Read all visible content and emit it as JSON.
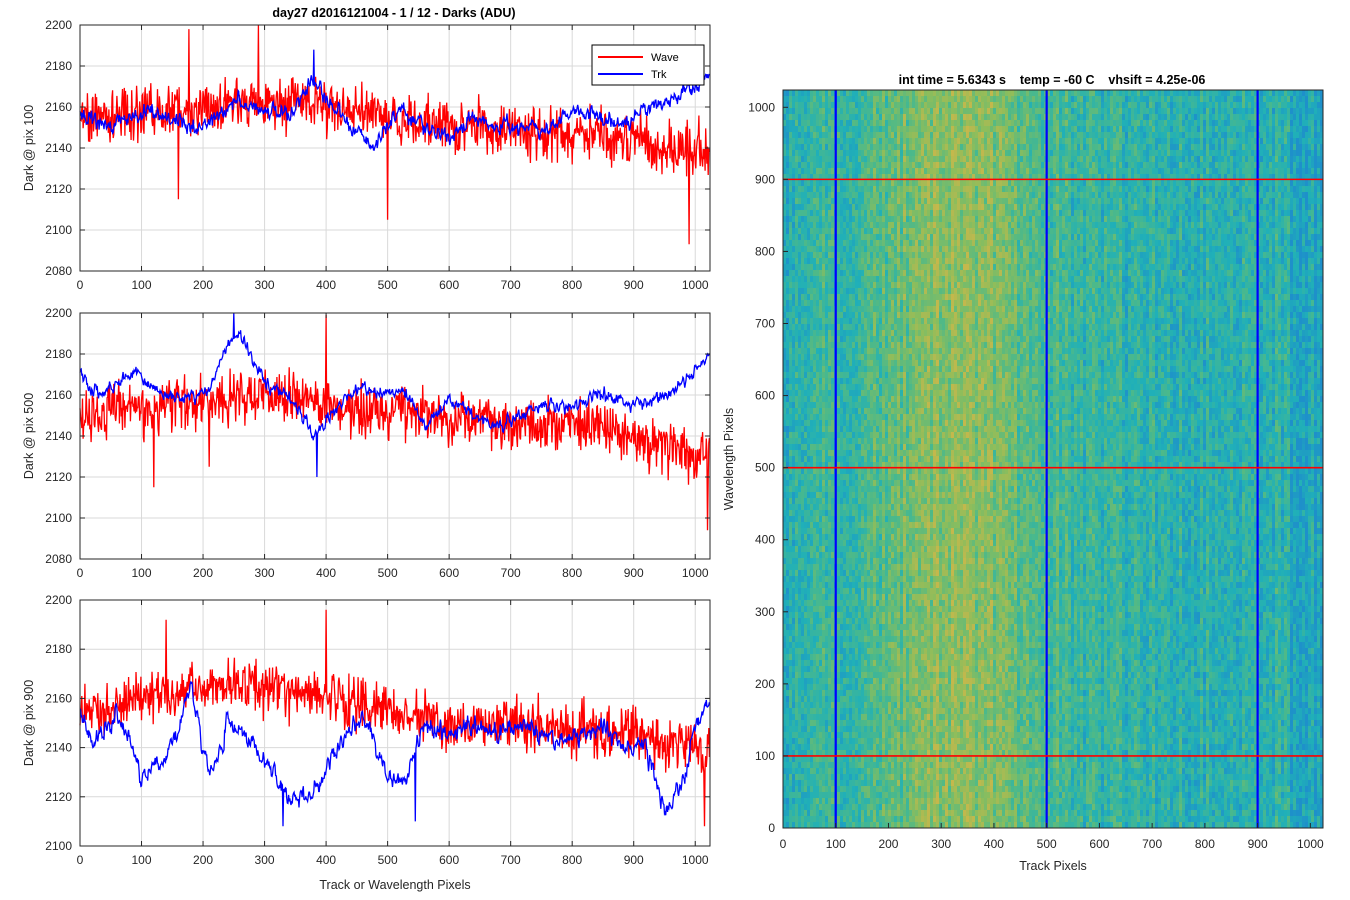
{
  "figure": {
    "title": "day27 d2016121004 - 1 / 12 - Darks (ADU)",
    "background": "#ffffff"
  },
  "chart_data": [
    {
      "type": "line",
      "title": "day27 d2016121004 - 1 / 12 - Darks (ADU)",
      "xlabel": "",
      "ylabel": "Dark @ pix 100",
      "xlim": [
        0,
        1024
      ],
      "ylim": [
        2080,
        2200
      ],
      "xticks": [
        0,
        100,
        200,
        300,
        400,
        500,
        600,
        700,
        800,
        900,
        1000
      ],
      "yticks": [
        2080,
        2100,
        2120,
        2140,
        2160,
        2180,
        2200
      ],
      "grid": true,
      "legend": {
        "position": "top-right",
        "entries": [
          "Wave",
          "Trk"
        ]
      },
      "series": [
        {
          "name": "Wave",
          "color": "#ff0000",
          "anchors_x": [
            0,
            50,
            100,
            150,
            200,
            250,
            300,
            350,
            400,
            450,
            500,
            550,
            600,
            650,
            700,
            750,
            800,
            850,
            900,
            950,
            1000,
            1023
          ],
          "anchors_y": [
            2155,
            2156,
            2157,
            2158,
            2160,
            2162,
            2163,
            2162,
            2160,
            2158,
            2155,
            2152,
            2150,
            2150,
            2148,
            2148,
            2148,
            2146,
            2145,
            2140,
            2138,
            2140
          ],
          "noise": 11,
          "spikes": [
            [
              177,
              2198
            ],
            [
              290,
              2200
            ],
            [
              990,
              2093
            ],
            [
              500,
              2105
            ],
            [
              160,
              2115
            ]
          ]
        },
        {
          "name": "Trk",
          "color": "#0000ff",
          "anchors_x": [
            0,
            40,
            80,
            120,
            160,
            200,
            250,
            300,
            340,
            380,
            400,
            440,
            480,
            520,
            560,
            600,
            640,
            680,
            720,
            760,
            800,
            840,
            880,
            920,
            960,
            1000,
            1023
          ],
          "anchors_y": [
            2158,
            2150,
            2155,
            2158,
            2152,
            2150,
            2163,
            2158,
            2156,
            2172,
            2165,
            2150,
            2140,
            2160,
            2150,
            2145,
            2155,
            2152,
            2150,
            2148,
            2160,
            2155,
            2152,
            2160,
            2163,
            2168,
            2175
          ],
          "noise": 5,
          "spikes": [
            [
              380,
              2188
            ]
          ]
        }
      ]
    },
    {
      "type": "line",
      "title": "",
      "xlabel": "",
      "ylabel": "Dark @ pix 500",
      "xlim": [
        0,
        1024
      ],
      "ylim": [
        2080,
        2200
      ],
      "xticks": [
        0,
        100,
        200,
        300,
        400,
        500,
        600,
        700,
        800,
        900,
        1000
      ],
      "yticks": [
        2080,
        2100,
        2120,
        2140,
        2160,
        2180,
        2200
      ],
      "grid": true,
      "series": [
        {
          "name": "Wave",
          "color": "#ff0000",
          "anchors_x": [
            0,
            50,
            100,
            150,
            200,
            250,
            300,
            350,
            400,
            450,
            500,
            550,
            600,
            650,
            700,
            750,
            800,
            850,
            900,
            950,
            1000,
            1023
          ],
          "anchors_y": [
            2150,
            2152,
            2154,
            2155,
            2157,
            2160,
            2160,
            2158,
            2155,
            2152,
            2150,
            2150,
            2148,
            2148,
            2146,
            2145,
            2145,
            2143,
            2140,
            2135,
            2130,
            2132
          ],
          "noise": 11,
          "spikes": [
            [
              400,
              2199
            ],
            [
              1020,
              2094
            ],
            [
              120,
              2115
            ],
            [
              210,
              2125
            ]
          ]
        },
        {
          "name": "Trk",
          "color": "#0000ff",
          "anchors_x": [
            0,
            30,
            60,
            90,
            130,
            170,
            210,
            240,
            260,
            300,
            340,
            380,
            420,
            460,
            500,
            530,
            560,
            600,
            640,
            680,
            720,
            760,
            800,
            860,
            900,
            960,
            1000,
            1023
          ],
          "anchors_y": [
            2170,
            2160,
            2165,
            2172,
            2160,
            2158,
            2162,
            2185,
            2190,
            2165,
            2160,
            2140,
            2155,
            2165,
            2160,
            2162,
            2145,
            2158,
            2150,
            2145,
            2150,
            2155,
            2155,
            2160,
            2155,
            2160,
            2172,
            2180
          ],
          "noise": 4,
          "spikes": [
            [
              250,
              2200
            ],
            [
              385,
              2120
            ]
          ]
        }
      ]
    },
    {
      "type": "line",
      "title": "",
      "xlabel": "Track or Wavelength Pixels",
      "ylabel": "Dark @ pix 900",
      "xlim": [
        0,
        1024
      ],
      "ylim": [
        2100,
        2200
      ],
      "xticks": [
        0,
        100,
        200,
        300,
        400,
        500,
        600,
        700,
        800,
        900,
        1000
      ],
      "yticks": [
        2100,
        2120,
        2140,
        2160,
        2180,
        2200
      ],
      "grid": true,
      "series": [
        {
          "name": "Wave",
          "color": "#ff0000",
          "anchors_x": [
            0,
            50,
            100,
            150,
            200,
            250,
            300,
            350,
            400,
            450,
            500,
            550,
            600,
            650,
            700,
            750,
            800,
            850,
            900,
            950,
            1000,
            1023
          ],
          "anchors_y": [
            2155,
            2156,
            2160,
            2162,
            2164,
            2165,
            2164,
            2163,
            2162,
            2158,
            2155,
            2152,
            2150,
            2150,
            2150,
            2148,
            2148,
            2146,
            2145,
            2142,
            2140,
            2138
          ],
          "noise": 9,
          "spikes": [
            [
              400,
              2196
            ],
            [
              1015,
              2108
            ],
            [
              140,
              2192
            ]
          ]
        },
        {
          "name": "Trk",
          "color": "#0000ff",
          "anchors_x": [
            0,
            20,
            60,
            100,
            140,
            180,
            210,
            240,
            270,
            300,
            340,
            370,
            420,
            460,
            500,
            530,
            560,
            600,
            640,
            680,
            720,
            760,
            800,
            850,
            880,
            920,
            950,
            980,
            1000,
            1023
          ],
          "anchors_y": [
            2155,
            2140,
            2155,
            2128,
            2135,
            2165,
            2128,
            2150,
            2145,
            2135,
            2120,
            2118,
            2140,
            2155,
            2128,
            2125,
            2150,
            2145,
            2150,
            2145,
            2150,
            2142,
            2145,
            2148,
            2140,
            2140,
            2115,
            2125,
            2150,
            2160
          ],
          "noise": 5,
          "spikes": [
            [
              330,
              2108
            ],
            [
              545,
              2110
            ]
          ]
        }
      ]
    },
    {
      "type": "heatmap",
      "title": "int time = 5.6343 s    temp = -60 C    vhsift = 4.25e-06",
      "xlabel": "Track Pixels",
      "ylabel": "Wavelength Pixels",
      "xlim": [
        0,
        1024
      ],
      "ylim": [
        0,
        1024
      ],
      "xticks": [
        0,
        100,
        200,
        300,
        400,
        500,
        600,
        700,
        800,
        900,
        1000
      ],
      "yticks": [
        0,
        100,
        200,
        300,
        400,
        500,
        600,
        700,
        800,
        900,
        1000
      ],
      "colormap": [
        "#1e90ca",
        "#20b0b8",
        "#4cb98a",
        "#8cbd5c",
        "#c4b84c"
      ],
      "warm_band": {
        "center": 330,
        "width": 170
      },
      "vertical_markers": {
        "color": "#0000ff",
        "x": [
          100,
          500,
          900
        ]
      },
      "horizontal_markers": {
        "color": "#ff0000",
        "y": [
          100,
          500,
          900
        ]
      }
    }
  ]
}
